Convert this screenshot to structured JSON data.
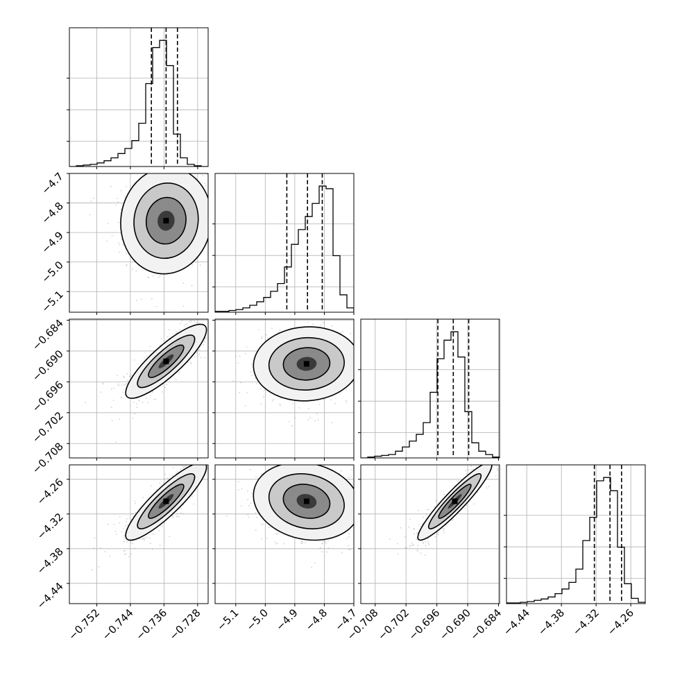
{
  "chart_data": {
    "type": "corner",
    "description_of_panels": "lower-triangle 2D histograms with contours, diagonal 1D histograms with dashed quantile lines",
    "grid": true,
    "colors": {
      "line": "#000000",
      "grid": "#b0b0b0",
      "points": "#9a9a9a"
    },
    "params": [
      {
        "range": [
          -0.7585,
          -0.7255
        ],
        "ticks": [
          -0.752,
          -0.744,
          -0.736,
          -0.728
        ],
        "tick_labels": [
          "−0.752",
          "−0.744",
          "−0.736",
          "−0.728"
        ],
        "quantiles": [
          -0.739,
          -0.7355,
          -0.7328
        ]
      },
      {
        "range": [
          -5.17,
          -4.7
        ],
        "ticks": [
          -5.1,
          -5.0,
          -4.9,
          -4.8,
          -4.7
        ],
        "tick_labels": [
          "−5.1",
          "−5.0",
          "−4.9",
          "−4.8",
          "−4.7"
        ],
        "quantiles": [
          -4.927,
          -4.857,
          -4.807
        ]
      },
      {
        "range": [
          -0.7108,
          -0.6838
        ],
        "ticks": [
          -0.708,
          -0.702,
          -0.696,
          -0.69,
          -0.684
        ],
        "tick_labels": [
          "−0.708",
          "−0.702",
          "−0.696",
          "−0.690",
          "−0.684"
        ],
        "quantiles": [
          -0.6958,
          -0.6928,
          -0.6898
        ]
      },
      {
        "range": [
          -4.475,
          -4.235
        ],
        "ticks": [
          -4.44,
          -4.38,
          -4.32,
          -4.26
        ],
        "tick_labels": [
          "−4.44",
          "−4.38",
          "−4.32",
          "−4.26"
        ],
        "quantiles": [
          -4.323,
          -4.296,
          -4.276
        ]
      }
    ],
    "histograms": [
      {
        "param": 0,
        "counts": [
          0,
          1,
          2,
          3,
          5,
          8,
          12,
          18,
          25,
          36,
          60,
          115,
          165,
          175,
          140,
          45,
          12,
          3,
          1,
          0
        ]
      },
      {
        "param": 1,
        "counts": [
          1,
          1,
          2,
          3,
          5,
          8,
          12,
          17,
          24,
          33,
          52,
          78,
          95,
          110,
          125,
          145,
          142,
          65,
          20,
          5
        ]
      },
      {
        "param": 2,
        "counts": [
          0,
          1,
          2,
          3,
          4,
          8,
          13,
          20,
          28,
          42,
          78,
          118,
          140,
          150,
          120,
          55,
          18,
          8,
          4,
          1
        ]
      },
      {
        "param": 3,
        "counts": [
          1,
          1,
          2,
          3,
          5,
          7,
          10,
          15,
          22,
          32,
          52,
          95,
          130,
          185,
          190,
          170,
          85,
          30,
          8,
          2
        ]
      }
    ],
    "joint_panels": [
      {
        "x": 0,
        "y": 1,
        "center": [
          -0.7355,
          -4.86
        ],
        "spread": [
          0.0045,
          0.075
        ],
        "corr": 0.05
      },
      {
        "x": 0,
        "y": 2,
        "center": [
          -0.7355,
          -0.692
        ],
        "spread": [
          0.004,
          0.003
        ],
        "corr": 0.85
      },
      {
        "x": 1,
        "y": 2,
        "center": [
          -4.86,
          -0.6925
        ],
        "spread": [
          0.075,
          0.003
        ],
        "corr": 0.05
      },
      {
        "x": 0,
        "y": 3,
        "center": [
          -0.7355,
          -4.298
        ],
        "spread": [
          0.004,
          0.028
        ],
        "corr": 0.88
      },
      {
        "x": 1,
        "y": 3,
        "center": [
          -4.86,
          -4.298
        ],
        "spread": [
          0.075,
          0.028
        ],
        "corr": -0.15
      },
      {
        "x": 2,
        "y": 3,
        "center": [
          -0.6925,
          -4.298
        ],
        "spread": [
          0.003,
          0.028
        ],
        "corr": 0.93
      }
    ]
  }
}
